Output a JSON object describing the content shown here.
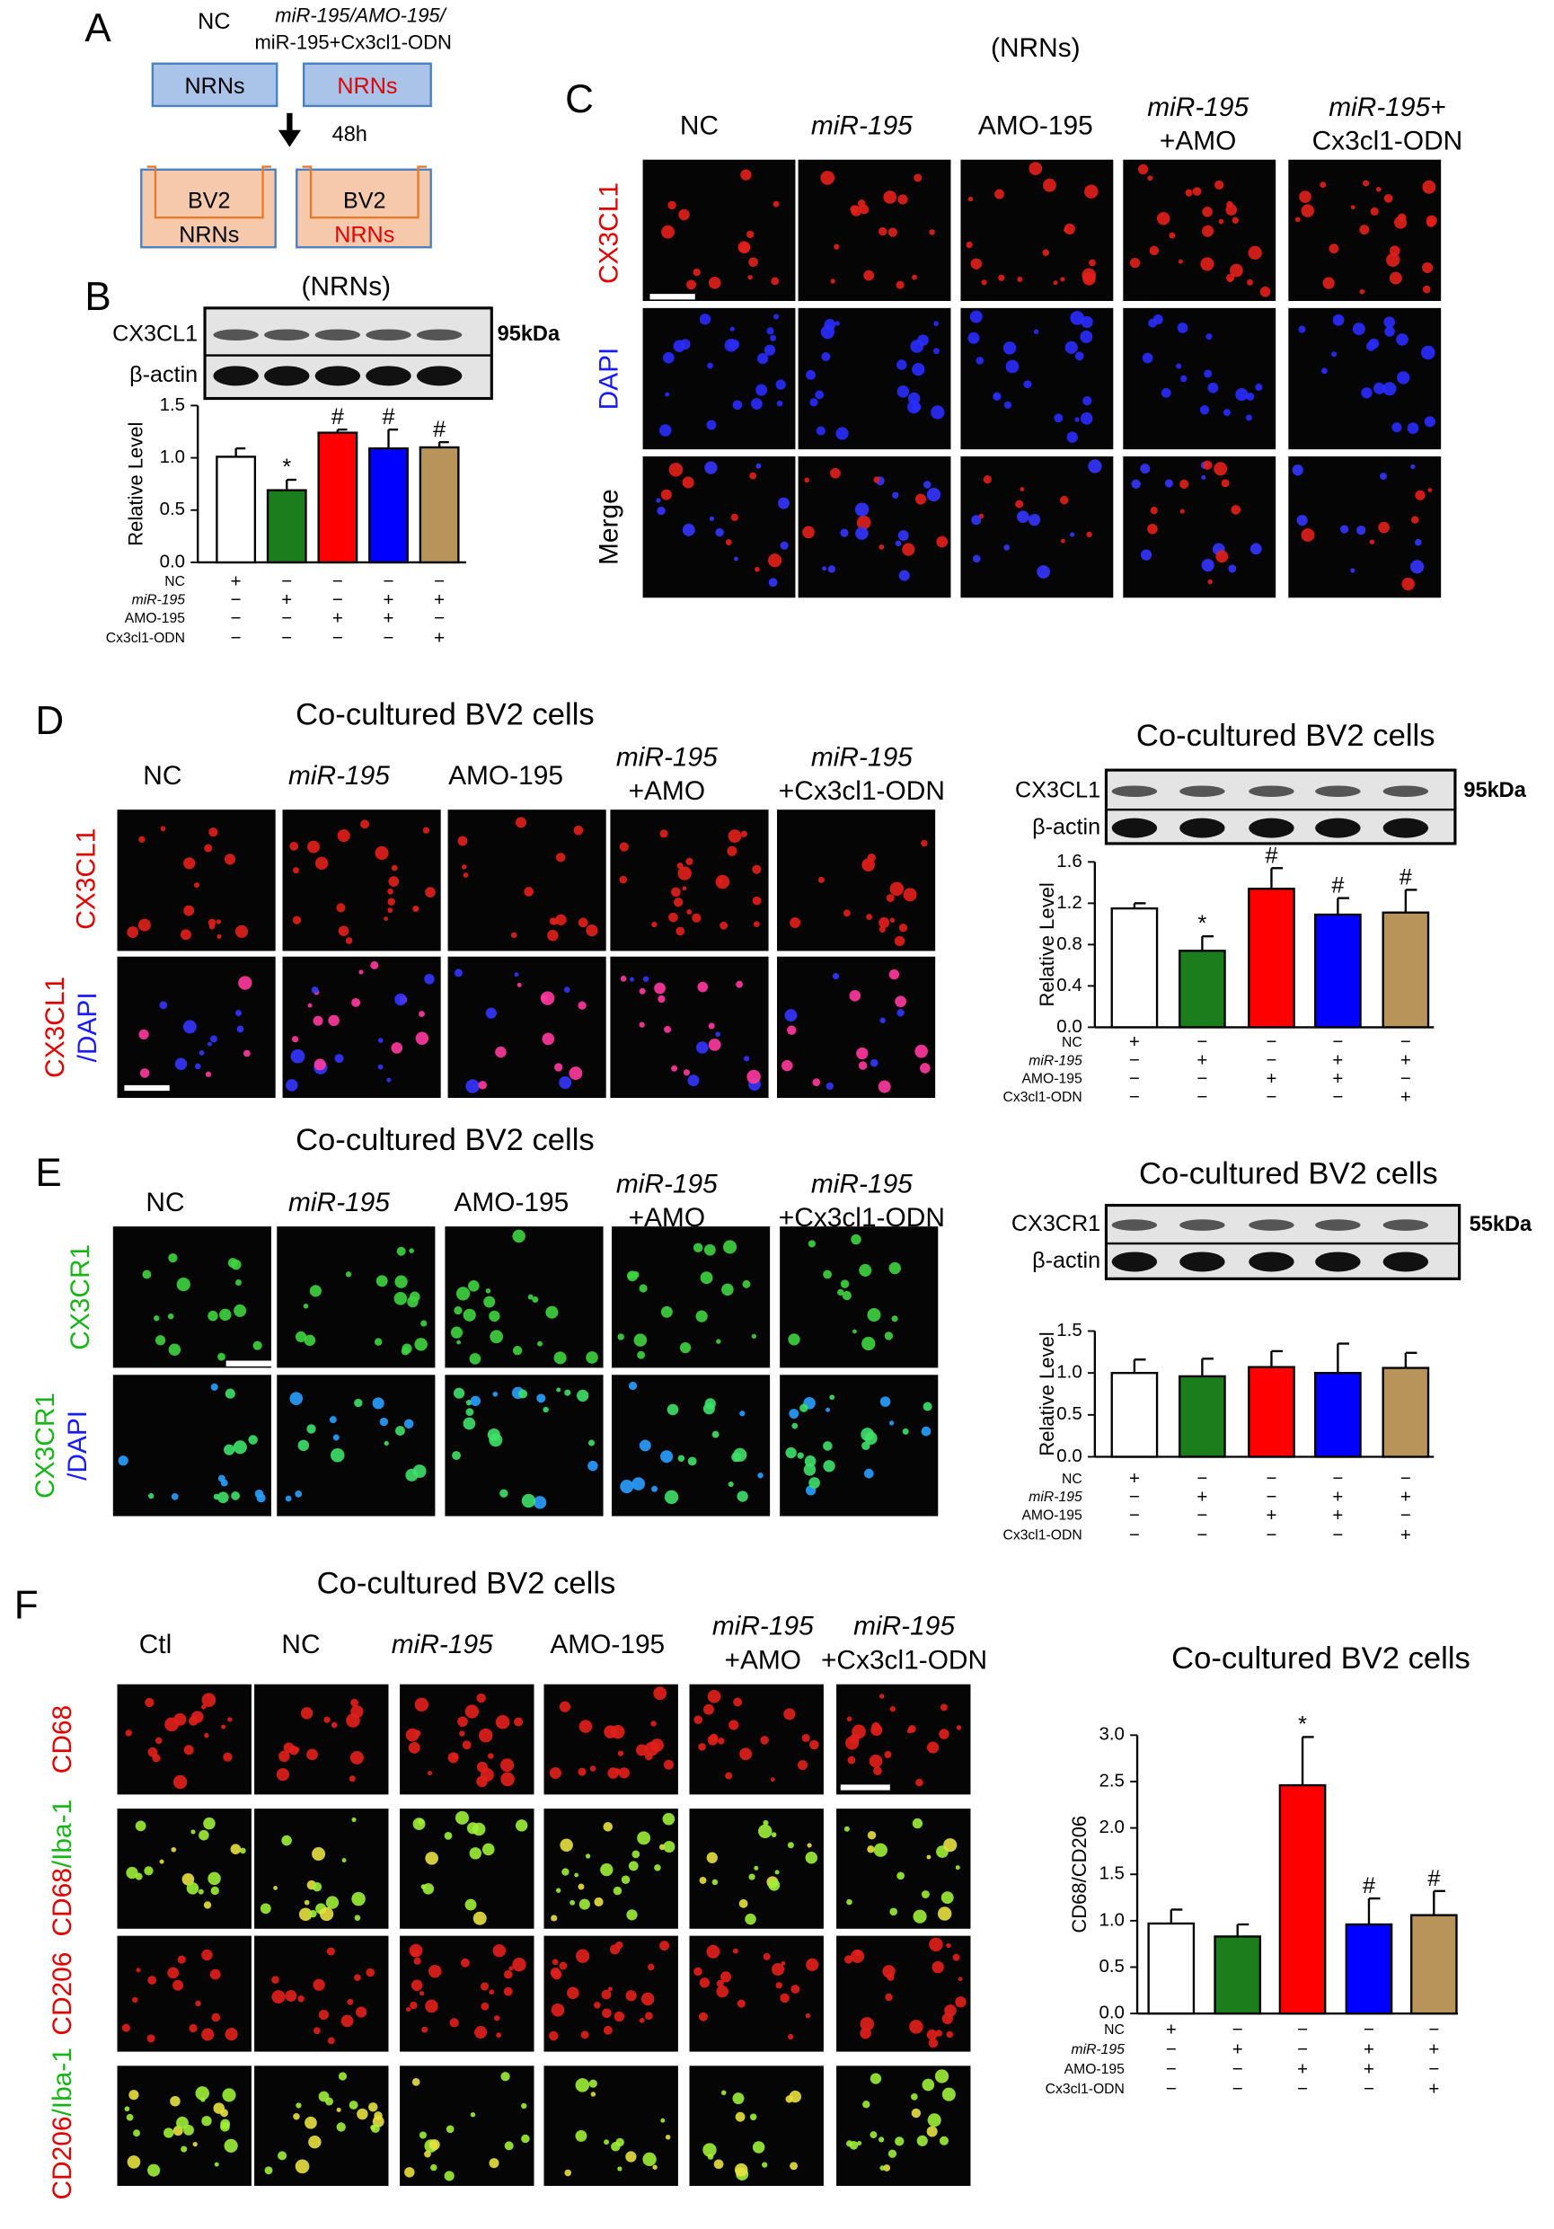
{
  "panels": {
    "a": {
      "label": "A",
      "nc": "NC",
      "treatment_line1": "miR-195/AMO-195/",
      "treatment_line2": "miR-195+Cx3cl1-ODN",
      "upper_wells": [
        "NRNs",
        "NRNs"
      ],
      "time": "48h",
      "lower_wells": [
        [
          "BV2",
          "NRNs"
        ],
        [
          "BV2",
          "NRNs"
        ]
      ]
    },
    "b": {
      "label": "B",
      "heading": "(NRNs)",
      "blot_rows": [
        "CX3CL1",
        "β-actin"
      ],
      "marker": "95kDa"
    },
    "c": {
      "label": "C",
      "heading": "(NRNs)",
      "columns": [
        [
          "NC"
        ],
        [
          "miR-195"
        ],
        [
          "AMO-195"
        ],
        [
          "miR-195",
          "+AMO"
        ],
        [
          "miR-195+",
          "Cx3cl1-ODN"
        ]
      ],
      "rows": [
        [
          "CX3CL1"
        ],
        [
          "DAPI"
        ],
        [
          "Merge"
        ]
      ]
    },
    "d": {
      "label": "D",
      "title": "Co-cultured BV2 cells",
      "columns": [
        [
          "NC"
        ],
        [
          "miR-195"
        ],
        [
          "AMO-195"
        ],
        [
          "miR-195",
          "+AMO"
        ],
        [
          "miR-195",
          "+Cx3cl1-ODN"
        ]
      ],
      "rows": [
        [
          "CX3CL1"
        ],
        [
          "CX3CL1",
          "/DAPI"
        ]
      ],
      "blot_title": "Co-cultured BV2 cells",
      "blot_rows": [
        "CX3CL1",
        "β-actin"
      ],
      "marker": "95kDa"
    },
    "e": {
      "label": "E",
      "title": "Co-cultured BV2 cells",
      "columns": [
        [
          "NC"
        ],
        [
          "miR-195"
        ],
        [
          "AMO-195"
        ],
        [
          "miR-195",
          "+AMO"
        ],
        [
          "miR-195",
          "+Cx3cl1-ODN"
        ]
      ],
      "rows": [
        [
          "CX3CR1"
        ],
        [
          "CX3CR1",
          "/DAPI"
        ]
      ],
      "blot_title": "Co-cultured BV2 cells",
      "blot_rows": [
        "CX3CR1",
        "β-actin"
      ],
      "marker": "55kDa"
    },
    "f": {
      "label": "F",
      "title": "Co-cultured BV2 cells",
      "columns": [
        [
          "Ctl"
        ],
        [
          "NC"
        ],
        [
          "miR-195"
        ],
        [
          "AMO-195"
        ],
        [
          "miR-195",
          "+AMO"
        ],
        [
          "miR-195",
          "+Cx3cl1-ODN"
        ]
      ],
      "rows": [
        [
          "CD68"
        ],
        [
          "CD68",
          "/Iba-1"
        ],
        [
          "CD206"
        ],
        [
          "CD206",
          "/Iba-1"
        ]
      ]
    }
  },
  "chart_data": [
    {
      "type": "bar",
      "ylabel": "Relative Level",
      "ylim": [
        0,
        1.5
      ],
      "yticks": [
        {
          "value": 0,
          "label": "0.0"
        },
        0.5,
        {
          "value": 1,
          "label": "1.0"
        },
        1.5
      ],
      "values": [
        1.01,
        0.69,
        1.24,
        1.09,
        1.1
      ],
      "errors": [
        0.08,
        0.1,
        0.03,
        0.18,
        0.05
      ],
      "colors": [
        "#ffffff",
        "#1b7d1b",
        "#ff0000",
        "#0000ff",
        "#b8935a"
      ],
      "annotations": [
        null,
        "*",
        "#",
        "#",
        "#"
      ],
      "conditions": {
        "names": [
          "NC",
          "miR-195",
          "AMO-195",
          "Cx3cl1-ODN"
        ],
        "signs": [
          [
            "+",
            "−",
            "−",
            "−",
            "−"
          ],
          [
            "−",
            "+",
            "−",
            "+",
            "+"
          ],
          [
            "−",
            "−",
            "+",
            "+",
            "−"
          ],
          [
            "−",
            "−",
            "−",
            "−",
            "+"
          ]
        ]
      }
    },
    {
      "type": "bar",
      "ylabel": "Relative Level",
      "ylim": [
        0,
        1.6
      ],
      "yticks": [
        {
          "value": 0,
          "label": "0.0"
        },
        0.4,
        0.8,
        1.2,
        1.6
      ],
      "values": [
        1.15,
        0.74,
        1.34,
        1.09,
        1.11
      ],
      "errors": [
        0.05,
        0.14,
        0.2,
        0.16,
        0.22
      ],
      "colors": [
        "#ffffff",
        "#1b7d1b",
        "#ff0000",
        "#0000ff",
        "#b8935a"
      ],
      "annotations": [
        null,
        "*",
        "#",
        "#",
        "#"
      ],
      "conditions": {
        "names": [
          "NC",
          "miR-195",
          "AMO-195",
          "Cx3cl1-ODN"
        ],
        "signs": [
          [
            "+",
            "−",
            "−",
            "−",
            "−"
          ],
          [
            "−",
            "+",
            "−",
            "+",
            "+"
          ],
          [
            "−",
            "−",
            "+",
            "+",
            "−"
          ],
          [
            "−",
            "−",
            "−",
            "−",
            "+"
          ]
        ]
      }
    },
    {
      "type": "bar",
      "ylabel": "Relative Level",
      "ylim": [
        0,
        1.5
      ],
      "yticks": [
        {
          "value": 0,
          "label": "0.0"
        },
        0.5,
        {
          "value": 1,
          "label": "1.0"
        },
        1.5
      ],
      "values": [
        1.0,
        0.96,
        1.07,
        1.0,
        1.06
      ],
      "errors": [
        0.16,
        0.21,
        0.19,
        0.35,
        0.18
      ],
      "colors": [
        "#ffffff",
        "#1b7d1b",
        "#ff0000",
        "#0000ff",
        "#b8935a"
      ],
      "annotations": [
        null,
        null,
        null,
        null,
        null
      ],
      "conditions": {
        "names": [
          "NC",
          "miR-195",
          "AMO-195",
          "Cx3cl1-ODN"
        ],
        "signs": [
          [
            "+",
            "−",
            "−",
            "−",
            "−"
          ],
          [
            "−",
            "+",
            "−",
            "+",
            "+"
          ],
          [
            "−",
            "−",
            "+",
            "+",
            "−"
          ],
          [
            "−",
            "−",
            "−",
            "−",
            "+"
          ]
        ]
      }
    },
    {
      "type": "bar",
      "title": "Co-cultured BV2 cells",
      "ylabel": "CD68/CD206",
      "ylim": [
        0,
        3
      ],
      "yticks": [
        {
          "value": 0,
          "label": "0.0"
        },
        0.5,
        {
          "value": 1,
          "label": "1.0"
        },
        1.5,
        {
          "value": 2,
          "label": "2.0"
        },
        2.5,
        {
          "value": 3,
          "label": "3.0"
        }
      ],
      "values": [
        0.97,
        0.83,
        2.46,
        0.96,
        1.06
      ],
      "errors": [
        0.15,
        0.13,
        0.52,
        0.28,
        0.26
      ],
      "colors": [
        "#ffffff",
        "#1b7d1b",
        "#ff0000",
        "#0000ff",
        "#b8935a"
      ],
      "annotations": [
        null,
        null,
        "*",
        "#",
        "#"
      ],
      "conditions": {
        "names": [
          "NC",
          "miR-195",
          "AMO-195",
          "Cx3cl1-ODN"
        ],
        "signs": [
          [
            "+",
            "−",
            "−",
            "−",
            "−"
          ],
          [
            "−",
            "+",
            "−",
            "+",
            "+"
          ],
          [
            "−",
            "−",
            "+",
            "+",
            "−"
          ],
          [
            "−",
            "−",
            "−",
            "−",
            "+"
          ]
        ]
      }
    }
  ]
}
